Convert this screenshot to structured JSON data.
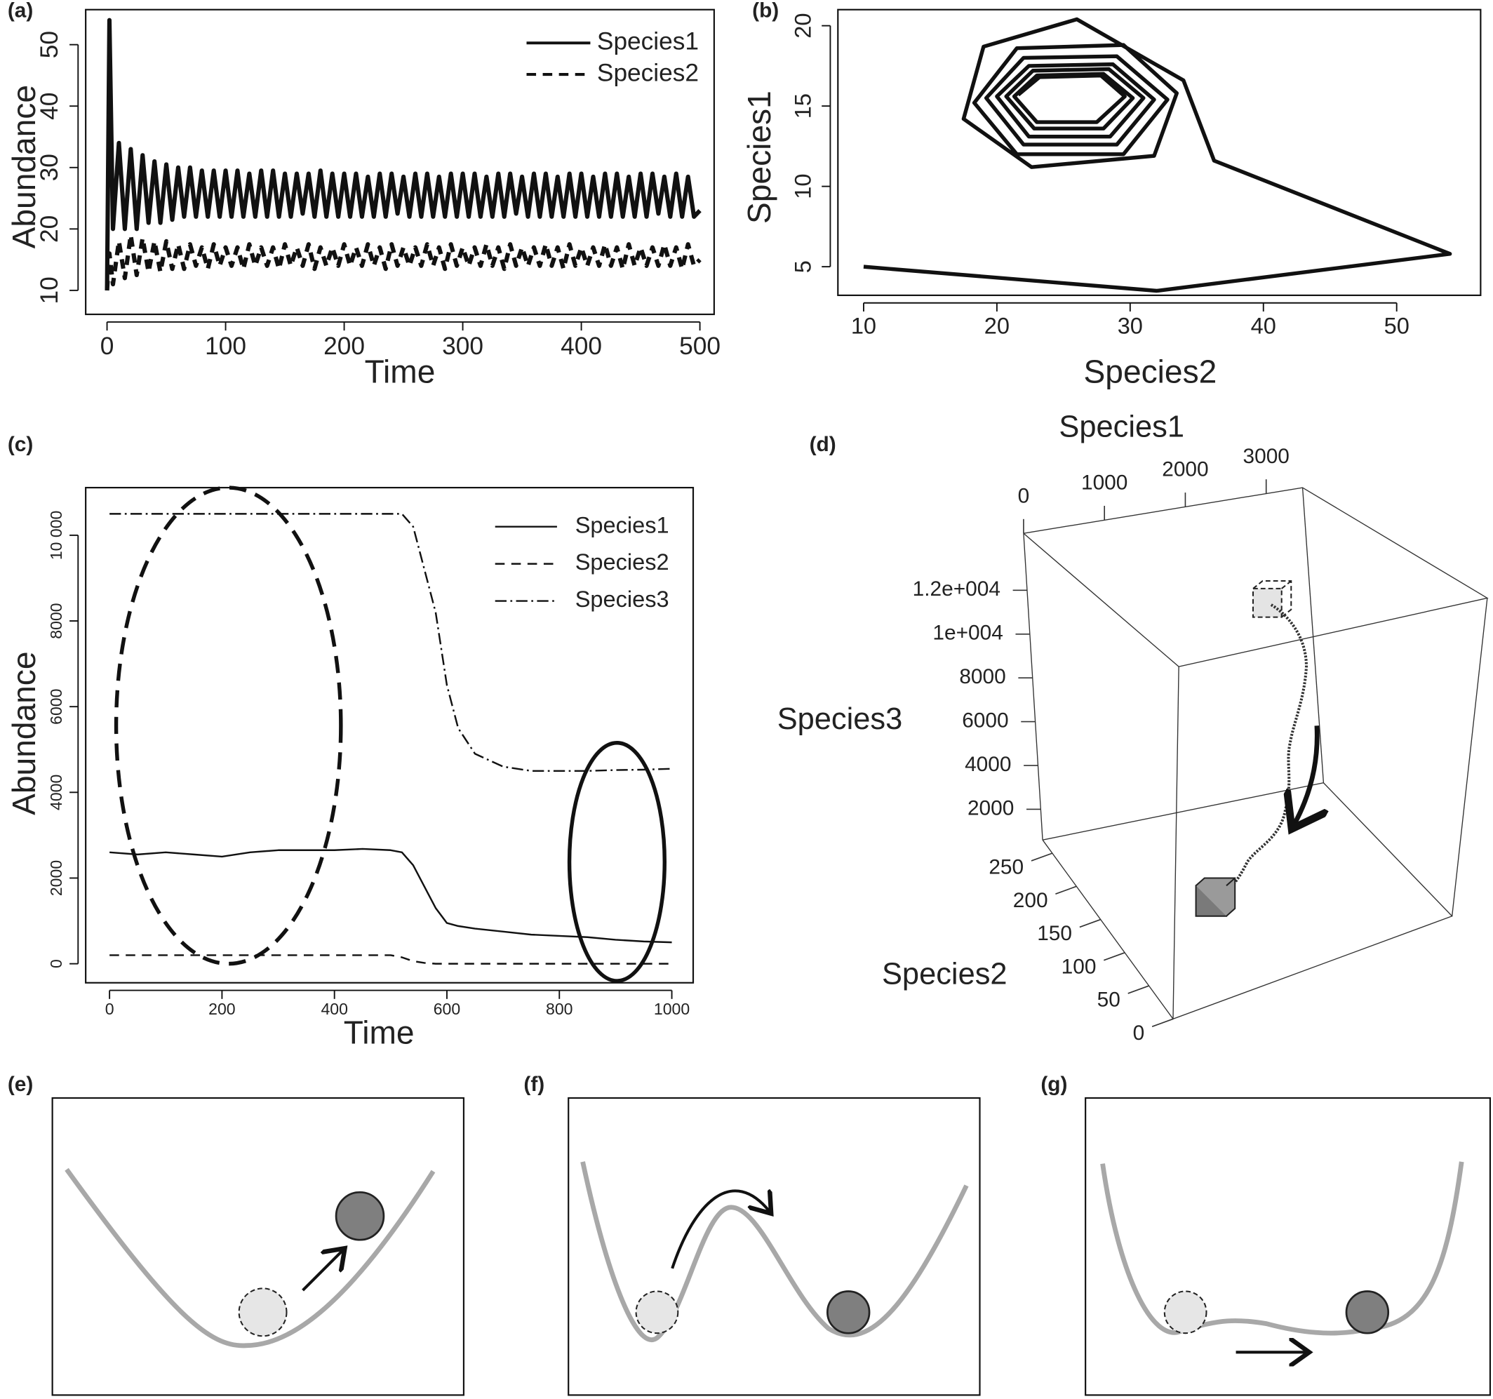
{
  "chart_data": [
    {
      "type": "line",
      "panel_label": "(a)",
      "xlabel": "Time",
      "ylabel": "Abundance",
      "x": [
        0,
        2,
        5,
        10,
        15,
        20,
        25,
        30,
        35,
        40,
        45,
        50,
        55,
        60,
        65,
        70,
        75,
        80,
        85,
        90,
        95,
        100,
        105,
        110,
        115,
        120,
        125,
        130,
        135,
        140,
        145,
        150,
        155,
        160,
        165,
        170,
        175,
        180,
        185,
        190,
        195,
        200,
        205,
        210,
        215,
        220,
        225,
        230,
        235,
        240,
        245,
        250,
        255,
        260,
        265,
        270,
        275,
        280,
        285,
        290,
        295,
        300,
        305,
        310,
        315,
        320,
        325,
        330,
        335,
        340,
        345,
        350,
        355,
        360,
        365,
        370,
        375,
        380,
        385,
        390,
        395,
        400,
        405,
        410,
        415,
        420,
        425,
        430,
        435,
        440,
        445,
        450,
        455,
        460,
        465,
        470,
        475,
        480,
        485,
        490,
        495,
        500
      ],
      "series": [
        {
          "name": "Species1",
          "color": "#111111",
          "line_style": "solid",
          "values": [
            10,
            54,
            20,
            34,
            20,
            33,
            20,
            32,
            21,
            31,
            21,
            30.5,
            21.5,
            30,
            22,
            30,
            22,
            29.5,
            22,
            29.5,
            22,
            29.5,
            22,
            29.5,
            22,
            29,
            22,
            29.5,
            22,
            29.5,
            22,
            29,
            22,
            29,
            22.5,
            29,
            22,
            29.5,
            22,
            29,
            22,
            29,
            22,
            29,
            22,
            28.5,
            22,
            29,
            22,
            29,
            22.5,
            28.5,
            22,
            29,
            22,
            29,
            22,
            28.5,
            22,
            29,
            22,
            29,
            22,
            29,
            22,
            28.5,
            22,
            29,
            22,
            29,
            22.5,
            28.5,
            22,
            29,
            22,
            29,
            22,
            28.5,
            22,
            29,
            22,
            29,
            22,
            28.5,
            22,
            29,
            22,
            29,
            22,
            28.5,
            22,
            29,
            22,
            29,
            22.5,
            28.5,
            22,
            29,
            22,
            28.5,
            22,
            23
          ]
        },
        {
          "name": "Species2",
          "color": "#111111",
          "line_style": "dashed",
          "values": [
            10,
            16,
            11,
            18,
            12,
            19,
            12.5,
            18.5,
            13,
            18,
            13,
            18,
            13.5,
            17.5,
            13.5,
            17.5,
            14,
            17,
            13.5,
            17.5,
            14,
            17,
            14,
            17,
            13.5,
            17.5,
            14,
            17,
            14,
            17,
            13.5,
            17.5,
            14,
            17,
            14,
            17.5,
            13.5,
            17,
            14,
            17,
            14,
            17.5,
            14,
            17,
            14,
            17.5,
            14,
            17,
            13.5,
            17.5,
            14,
            17,
            14,
            17,
            14,
            17.5,
            14,
            17,
            13.5,
            17.5,
            14,
            17,
            14,
            17,
            14,
            17.5,
            14,
            17,
            13.5,
            17.5,
            14,
            17,
            14,
            17,
            14,
            17.5,
            14,
            17,
            13.5,
            17.5,
            14,
            17,
            14,
            17,
            14,
            17.5,
            14,
            17,
            13.5,
            17.5,
            14,
            17,
            14,
            17,
            14,
            17.5,
            14,
            17,
            13.5,
            17.5,
            14,
            15
          ]
        }
      ],
      "xlim": [
        -18,
        512
      ],
      "xticks": [
        0,
        100,
        200,
        300,
        400,
        500
      ],
      "ylim": [
        6.1,
        55.7
      ],
      "yticks": [
        10,
        20,
        30,
        40,
        50
      ],
      "legend": "top-right"
    },
    {
      "type": "line",
      "panel_label": "(b)",
      "xlabel": "Species2",
      "ylabel": "Species1",
      "color": "#111111",
      "x": [
        10,
        32,
        54,
        36.3,
        34,
        26,
        19,
        17.5,
        22.6,
        31.8,
        33.5,
        29.5,
        21.5,
        18.3,
        21.5,
        29.5,
        32.8,
        29,
        22,
        19.2,
        22,
        29,
        31.8,
        28.7,
        22.4,
        20,
        22.4,
        28.5,
        31,
        28.4,
        22.7,
        20.7,
        22.8,
        28,
        30.2,
        28,
        23,
        21.3,
        23,
        27.5,
        29.6,
        27.8,
        23.2,
        21.6
      ],
      "values": [
        5,
        3.5,
        5.8,
        11.6,
        16.6,
        20.4,
        18.7,
        14.2,
        11.2,
        11.9,
        15.8,
        18.8,
        18.6,
        15.2,
        12,
        12,
        15.4,
        18.1,
        18,
        15.5,
        12.6,
        12.6,
        15.4,
        17.6,
        17.5,
        15.6,
        13.1,
        13.1,
        15.5,
        17.3,
        17.2,
        15.6,
        13.6,
        13.6,
        15.5,
        17,
        16.9,
        15.6,
        14,
        14,
        15.6,
        16.9,
        16.8,
        15.7
      ],
      "xlim": [
        8.07,
        56.3
      ],
      "xticks": [
        10,
        20,
        30,
        40,
        50
      ],
      "ylim": [
        3.22,
        21.0
      ],
      "yticks": [
        5,
        10,
        15,
        20
      ]
    },
    {
      "type": "line",
      "panel_label": "(c)",
      "xlabel": "Time",
      "ylabel": "Abundance",
      "x": [
        0,
        50,
        100,
        150,
        200,
        250,
        300,
        350,
        400,
        450,
        500,
        520,
        540,
        560,
        580,
        600,
        620,
        650,
        700,
        750,
        800,
        850,
        900,
        950,
        1000
      ],
      "series": [
        {
          "name": "Species1",
          "color": "#111111",
          "line_style": "solid",
          "values": [
            2600,
            2550,
            2600,
            2550,
            2500,
            2600,
            2650,
            2650,
            2650,
            2680,
            2650,
            2600,
            2300,
            1800,
            1300,
            950,
            880,
            820,
            750,
            680,
            650,
            620,
            560,
            520,
            500
          ]
        },
        {
          "name": "Species2",
          "color": "#111111",
          "line_style": "dashed",
          "values": [
            200,
            200,
            200,
            200,
            200,
            200,
            200,
            200,
            200,
            200,
            200,
            150,
            60,
            20,
            0,
            0,
            0,
            0,
            0,
            0,
            0,
            0,
            0,
            0,
            0
          ]
        },
        {
          "name": "Species3",
          "color": "#111111",
          "line_style": "dotdash",
          "values": [
            10500,
            10500,
            10500,
            10500,
            10500,
            10500,
            10500,
            10500,
            10500,
            10500,
            10500,
            10500,
            10200,
            9200,
            8200,
            6500,
            5500,
            4900,
            4600,
            4500,
            4500,
            4500,
            4520,
            4530,
            4550
          ]
        }
      ],
      "xlim": [
        -42.4,
        1038
      ],
      "xticks": [
        0,
        200,
        400,
        600,
        800,
        1000
      ],
      "ylim": [
        -444,
        11111
      ],
      "yticks": [
        0,
        2000,
        4000,
        6000,
        8000,
        {
          "value": 10000,
          "label": "10 000"
        }
      ],
      "legend": "top-right"
    },
    {
      "type": "scatter3d",
      "panel_label": "(d)",
      "xlabel": "Species1",
      "xlim": [
        0,
        3450
      ],
      "xticks": [
        0,
        1000,
        2000,
        3000
      ],
      "ylabel": "Species2",
      "ylim": [
        0,
        270
      ],
      "yticks": [
        0,
        50,
        100,
        150,
        200,
        250
      ],
      "zlabel": "Species3",
      "zlim": [
        600,
        14600
      ],
      "zticks": [
        2000,
        4000,
        6000,
        8000,
        {
          "value": 10000,
          "label": "1e+004"
        },
        {
          "value": 12000,
          "label": "1.2e+004"
        }
      ]
    }
  ],
  "diagrams": [
    {
      "panel_label": "(e)"
    },
    {
      "panel_label": "(f)"
    },
    {
      "panel_label": "(g)"
    }
  ]
}
